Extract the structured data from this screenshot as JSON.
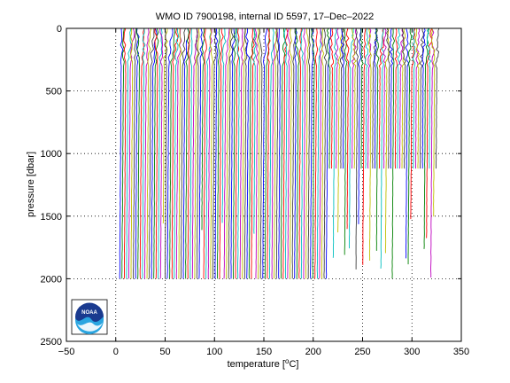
{
  "chart_data": {
    "type": "line",
    "title": "WMO ID 7900198, internal ID 5597, 17–Dec–2022",
    "xlabel_prefix": "temperature [",
    "xlabel_unit": "C]",
    "xlabel_sup": "o",
    "ylabel": "pressure [dbar]",
    "xlim": [
      -50,
      350
    ],
    "ylim": [
      2500,
      0
    ],
    "y_reversed": true,
    "grid": true,
    "grid_style": "dotted",
    "x_ticks": [
      "−50",
      "0",
      "50",
      "100",
      "150",
      "200",
      "250",
      "300",
      "350"
    ],
    "x_tick_values": [
      -50,
      0,
      50,
      100,
      150,
      200,
      250,
      300,
      350
    ],
    "y_ticks": [
      "0",
      "500",
      "1000",
      "1500",
      "2000",
      "2500"
    ],
    "y_tick_values": [
      0,
      500,
      1000,
      1500,
      2000,
      2500
    ],
    "description_of_series": "Waterfall of many temperature profiles, each offset in temperature; most reach 2000 dbar, later profiles end near 1100 dbar with some extending deeper.",
    "series_count": 140,
    "offset_per_profile": 2.3,
    "profiles": {
      "first_offset": 3,
      "surface_temp_range": [
        0,
        6
      ],
      "deep_temp": 1,
      "max_pressure_early": 2000,
      "max_pressure_late": 1120,
      "late_start_index": 92
    },
    "colors": [
      "#0000ff",
      "#008000",
      "#ff0000",
      "#00bfbf",
      "#bf00bf",
      "#bfbf00",
      "#404040"
    ],
    "logo": "noaa-logo"
  }
}
